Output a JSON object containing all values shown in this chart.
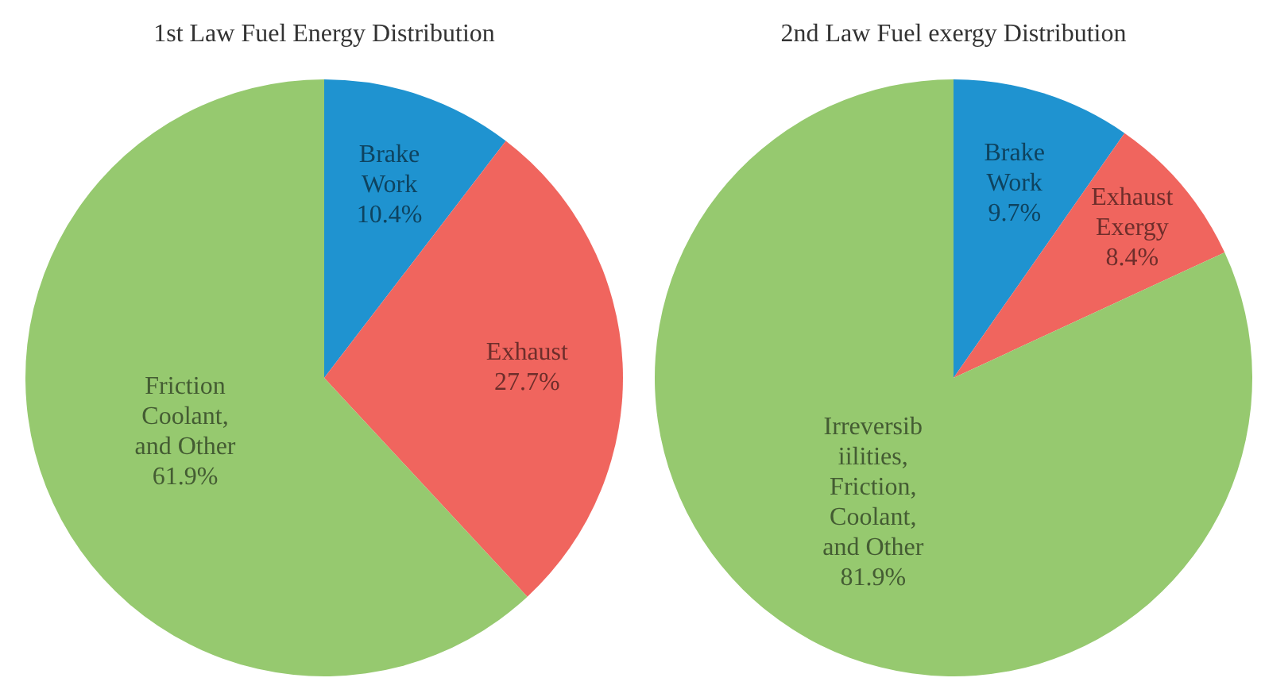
{
  "chart_data": [
    {
      "type": "pie",
      "title": "1st Law Fuel Energy Distribution",
      "categories": [
        "Brake\nWork",
        "Exhaust",
        "Friction\nCoolant,\nand Other"
      ],
      "values": [
        10.4,
        27.7,
        61.9
      ],
      "value_labels": [
        "10.4%",
        "27.7%",
        "61.9%"
      ],
      "colors": [
        "#1f93d0",
        "#f0655e",
        "#96c96f"
      ]
    },
    {
      "type": "pie",
      "title": "2nd Law Fuel exergy Distribution",
      "categories": [
        "Brake\nWork",
        "Exhaust\nExergy",
        "Irreversib\niilities,\nFriction,\nCoolant,\nand Other"
      ],
      "values": [
        9.7,
        8.4,
        81.9
      ],
      "value_labels": [
        "9.7%",
        "8.4%",
        "81.9%"
      ],
      "colors": [
        "#1f93d0",
        "#f0655e",
        "#96c96f"
      ]
    }
  ]
}
